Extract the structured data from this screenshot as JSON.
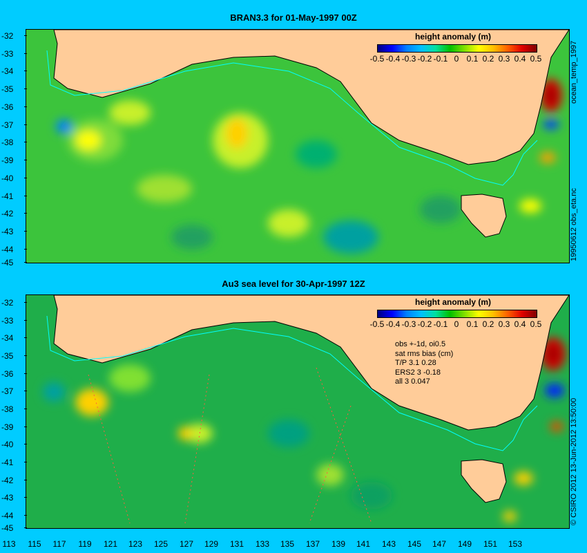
{
  "top_panel": {
    "title": "BRAN3.3 for 01-May-1997 00Z",
    "side_label_top": "ocean_temp_1997",
    "side_label_bottom": "19950612 obs_eta.nc"
  },
  "bottom_panel": {
    "title": "Au3 sea level  for 30-Apr-1997 12Z",
    "stats": [
      "obs +-1d, oi0.5",
      "sat rms bias (cm)",
      "T/P  3.1 0.28",
      "ERS2 3 -0.18",
      "all 3 0.047"
    ],
    "side_label": "© CSIRO 2012  13-Jun-2012 13:50:00"
  },
  "legend": {
    "title": "height anomaly (m)",
    "labels": [
      "-0.5",
      "-0.4",
      "-0.3",
      "-0.2",
      "-0.1",
      "0",
      "0.1",
      "0.2",
      "0.3",
      "0.4",
      "0.5"
    ]
  },
  "axes": {
    "lat_labels": [
      "-32",
      "-33",
      "-34",
      "-35",
      "-36",
      "-37",
      "-38",
      "-39",
      "-40",
      "-41",
      "-42",
      "-43",
      "-44",
      "-45"
    ],
    "lon_labels": [
      "113",
      "115",
      "117",
      "119",
      "121",
      "123",
      "125",
      "127",
      "129",
      "131",
      "133",
      "135",
      "137",
      "139",
      "141",
      "143",
      "145",
      "147",
      "149",
      "151",
      "153"
    ]
  },
  "colors": {
    "background": "#00ccff",
    "land": "#ffcc99",
    "ocean_base": "#22b14c",
    "coastline_track": "#00ffff"
  }
}
